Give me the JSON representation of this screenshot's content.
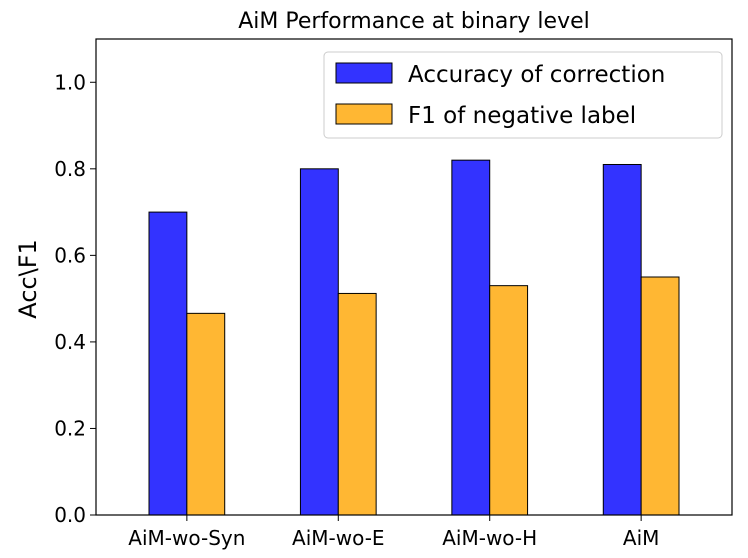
{
  "chart_data": {
    "type": "bar",
    "title": "AiM Performance at binary level",
    "xlabel": "",
    "ylabel": "Acc\\F1",
    "categories": [
      "AiM-wo-Syn",
      "AiM-wo-E",
      "AiM-wo-H",
      "AiM"
    ],
    "series": [
      {
        "name": "Accuracy of correction",
        "color": "#3333ff",
        "values": [
          0.7,
          0.8,
          0.82,
          0.81
        ]
      },
      {
        "name": "F1 of negative label",
        "color": "#ffb733",
        "values": [
          0.466,
          0.512,
          0.53,
          0.55
        ]
      }
    ],
    "ylim": [
      0,
      1.1
    ],
    "yticks": [
      0.0,
      0.2,
      0.4,
      0.6,
      0.8,
      1.0
    ],
    "ytick_labels": [
      "0.0",
      "0.2",
      "0.4",
      "0.6",
      "0.8",
      "1.0"
    ],
    "grid": false,
    "legend_position": "top-right"
  }
}
